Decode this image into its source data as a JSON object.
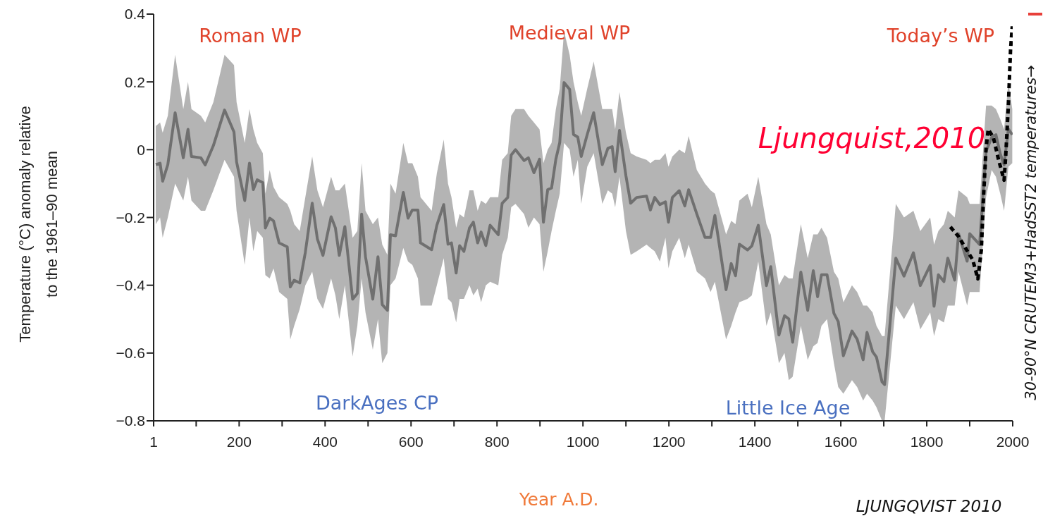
{
  "chart_data": {
    "type": "line",
    "xlabel": "Year A.D.",
    "ylabel": "Temperature (°C) anomaly relative to the 1961–90 mean",
    "annotations": [
      "Roman WP",
      "Medieval WP",
      "Today’s WP",
      "DarkAges CP",
      "Little Ice Age",
      "Ljungquist,2010",
      "LJUNGQVIST 2010",
      "30-90°N CRUTEM3+HadSST2 temperatures→"
    ],
    "xlim": [
      1,
      2000
    ],
    "xticks": [
      1,
      {
        "value": 100,
        "label": null
      },
      200,
      {
        "value": 300,
        "label": null
      },
      400,
      {
        "value": 500,
        "label": null
      },
      600,
      {
        "value": 700,
        "label": null
      },
      800,
      {
        "value": 900,
        "label": null
      },
      1000,
      {
        "value": 1100,
        "label": null
      },
      1200,
      {
        "value": 1300,
        "label": null
      },
      1400,
      {
        "value": 1500,
        "label": null
      },
      1600,
      {
        "value": 1700,
        "label": null
      },
      1800,
      {
        "value": 1900,
        "label": null
      },
      2000
    ],
    "ylim": [
      -0.8,
      0.4
    ],
    "yticks": [
      {
        "value": -0.8,
        "label": "−0.8"
      },
      {
        "value": -0.6,
        "label": "−0.6"
      },
      {
        "value": -0.4,
        "label": "−0.4"
      },
      {
        "value": -0.2,
        "label": "−0.2"
      },
      0,
      0.2,
      0.4
    ],
    "grid": false,
    "legend": false,
    "marker": "none",
    "series": [
      {
        "type": "line",
        "color": "#707070",
        "line_style": "solid",
        "x": [
          6,
          16,
          22,
          34,
          51,
          70,
          81,
          89,
          111,
          121,
          140,
          166,
          188,
          194,
          213,
          224,
          233,
          242,
          255,
          261,
          271,
          280,
          293,
          312,
          319,
          328,
          341,
          354,
          370,
          382,
          395,
          414,
          424,
          433,
          446,
          464,
          475,
          485,
          494,
          511,
          523,
          533,
          545,
          552,
          564,
          582,
          593,
          603,
          616,
          622,
          648,
          660,
          676,
          686,
          694,
          705,
          713,
          723,
          736,
          745,
          755,
          763,
          774,
          784,
          803,
          812,
          825,
          833,
          843,
          863,
          873,
          886,
          899,
          908,
          918,
          927,
          937,
          946,
          956,
          969,
          978,
          988,
          996,
          1010,
          1025,
          1045,
          1058,
          1068,
          1075,
          1085,
          1100,
          1111,
          1125,
          1148,
          1157,
          1167,
          1179,
          1192,
          1199,
          1208,
          1224,
          1237,
          1246,
          1265,
          1284,
          1297,
          1307,
          1333,
          1345,
          1355,
          1364,
          1383,
          1393,
          1408,
          1427,
          1437,
          1456,
          1469,
          1479,
          1488,
          1507,
          1523,
          1536,
          1546,
          1555,
          1568,
          1584,
          1594,
          1606,
          1626,
          1638,
          1652,
          1661,
          1674,
          1683,
          1696,
          1702,
          1728,
          1747,
          1769,
          1785,
          1808,
          1817,
          1827,
          1840,
          1849,
          1865,
          1874,
          1894,
          1900,
          1923,
          1938,
          1951,
          1961,
          1971,
          1980,
          1990,
          1999
        ],
        "values": [
          -0.044,
          -0.04,
          -0.093,
          -0.044,
          0.109,
          -0.024,
          0.06,
          -0.02,
          -0.024,
          -0.045,
          0.012,
          0.117,
          0.052,
          -0.036,
          -0.15,
          -0.04,
          -0.118,
          -0.089,
          -0.097,
          -0.231,
          -0.202,
          -0.21,
          -0.275,
          -0.287,
          -0.405,
          -0.385,
          -0.393,
          -0.303,
          -0.158,
          -0.263,
          -0.312,
          -0.198,
          -0.231,
          -0.312,
          -0.227,
          -0.441,
          -0.424,
          -0.19,
          -0.316,
          -0.441,
          -0.316,
          -0.457,
          -0.474,
          -0.251,
          -0.254,
          -0.126,
          -0.202,
          -0.178,
          -0.178,
          -0.275,
          -0.295,
          -0.223,
          -0.162,
          -0.279,
          -0.275,
          -0.364,
          -0.283,
          -0.3,
          -0.231,
          -0.214,
          -0.275,
          -0.243,
          -0.283,
          -0.223,
          -0.251,
          -0.158,
          -0.141,
          -0.016,
          0.0,
          -0.032,
          -0.024,
          -0.068,
          -0.028,
          -0.214,
          -0.118,
          -0.113,
          -0.028,
          0.021,
          0.198,
          0.178,
          0.045,
          0.037,
          -0.02,
          0.045,
          0.109,
          -0.044,
          0.004,
          0.009,
          -0.065,
          0.057,
          -0.077,
          -0.158,
          -0.141,
          -0.137,
          -0.178,
          -0.141,
          -0.162,
          -0.154,
          -0.214,
          -0.141,
          -0.121,
          -0.166,
          -0.118,
          -0.19,
          -0.259,
          -0.259,
          -0.194,
          -0.413,
          -0.336,
          -0.372,
          -0.279,
          -0.296,
          -0.284,
          -0.223,
          -0.401,
          -0.345,
          -0.547,
          -0.49,
          -0.499,
          -0.568,
          -0.361,
          -0.474,
          -0.357,
          -0.434,
          -0.369,
          -0.369,
          -0.483,
          -0.507,
          -0.608,
          -0.535,
          -0.559,
          -0.62,
          -0.539,
          -0.596,
          -0.612,
          -0.685,
          -0.693,
          -0.32,
          -0.373,
          -0.304,
          -0.401,
          -0.341,
          -0.462,
          -0.369,
          -0.389,
          -0.32,
          -0.385,
          -0.248,
          -0.329,
          -0.248,
          -0.28,
          -0.005,
          0.036,
          0.044,
          -0.012,
          -0.045,
          0.061,
          0.044
        ],
        "lower": [
          -0.22,
          -0.2,
          -0.26,
          -0.2,
          -0.1,
          -0.15,
          -0.08,
          -0.15,
          -0.18,
          -0.18,
          -0.12,
          -0.03,
          -0.08,
          -0.18,
          -0.34,
          -0.2,
          -0.3,
          -0.24,
          -0.26,
          -0.37,
          -0.38,
          -0.35,
          -0.42,
          -0.44,
          -0.56,
          -0.52,
          -0.47,
          -0.4,
          -0.36,
          -0.44,
          -0.47,
          -0.38,
          -0.43,
          -0.5,
          -0.4,
          -0.61,
          -0.52,
          -0.38,
          -0.48,
          -0.59,
          -0.5,
          -0.63,
          -0.6,
          -0.4,
          -0.38,
          -0.29,
          -0.33,
          -0.34,
          -0.38,
          -0.46,
          -0.46,
          -0.4,
          -0.32,
          -0.44,
          -0.45,
          -0.51,
          -0.44,
          -0.44,
          -0.4,
          -0.43,
          -0.41,
          -0.45,
          -0.4,
          -0.39,
          -0.4,
          -0.31,
          -0.26,
          -0.17,
          -0.16,
          -0.19,
          -0.23,
          -0.2,
          -0.22,
          -0.36,
          -0.3,
          -0.24,
          -0.18,
          -0.13,
          0.02,
          0.0,
          -0.08,
          -0.03,
          -0.16,
          -0.05,
          -0.01,
          -0.16,
          -0.12,
          -0.13,
          -0.17,
          -0.08,
          -0.24,
          -0.31,
          -0.3,
          -0.28,
          -0.29,
          -0.3,
          -0.33,
          -0.26,
          -0.35,
          -0.3,
          -0.26,
          -0.32,
          -0.28,
          -0.36,
          -0.38,
          -0.42,
          -0.39,
          -0.56,
          -0.52,
          -0.48,
          -0.45,
          -0.44,
          -0.43,
          -0.33,
          -0.52,
          -0.48,
          -0.63,
          -0.6,
          -0.68,
          -0.67,
          -0.52,
          -0.62,
          -0.58,
          -0.57,
          -0.52,
          -0.5,
          -0.63,
          -0.7,
          -0.72,
          -0.68,
          -0.7,
          -0.74,
          -0.72,
          -0.74,
          -0.76,
          -0.8,
          -0.8,
          -0.46,
          -0.5,
          -0.45,
          -0.53,
          -0.48,
          -0.55,
          -0.5,
          -0.51,
          -0.46,
          -0.46,
          -0.36,
          -0.46,
          -0.42,
          -0.42,
          -0.14,
          -0.06,
          -0.08,
          -0.13,
          -0.18,
          -0.05,
          -0.04
        ],
        "upper": [
          0.07,
          0.08,
          0.05,
          0.1,
          0.28,
          0.12,
          0.2,
          0.12,
          0.1,
          0.08,
          0.14,
          0.28,
          0.25,
          0.14,
          0.02,
          0.12,
          0.06,
          0.02,
          -0.01,
          -0.13,
          -0.06,
          -0.11,
          -0.14,
          -0.16,
          -0.18,
          -0.22,
          -0.24,
          -0.14,
          -0.02,
          -0.12,
          -0.17,
          -0.08,
          -0.12,
          -0.12,
          -0.1,
          -0.26,
          -0.24,
          -0.04,
          -0.18,
          -0.22,
          -0.2,
          -0.28,
          -0.31,
          -0.1,
          -0.13,
          0.02,
          -0.04,
          -0.04,
          -0.08,
          -0.14,
          -0.18,
          -0.07,
          0.03,
          -0.1,
          -0.14,
          -0.23,
          -0.19,
          -0.2,
          -0.12,
          -0.12,
          -0.18,
          -0.15,
          -0.16,
          -0.14,
          -0.14,
          -0.03,
          -0.01,
          0.1,
          0.12,
          0.12,
          0.1,
          0.08,
          0.06,
          -0.04,
          0.0,
          0.02,
          0.12,
          0.18,
          0.35,
          0.28,
          0.2,
          0.14,
          0.1,
          0.18,
          0.26,
          0.12,
          0.12,
          0.12,
          0.06,
          0.17,
          0.05,
          -0.01,
          -0.02,
          -0.03,
          -0.04,
          -0.03,
          -0.03,
          -0.01,
          -0.05,
          -0.02,
          0.0,
          -0.01,
          0.04,
          -0.06,
          -0.1,
          -0.12,
          -0.13,
          -0.25,
          -0.21,
          -0.22,
          -0.15,
          -0.13,
          -0.17,
          -0.08,
          -0.22,
          -0.25,
          -0.4,
          -0.37,
          -0.38,
          -0.38,
          -0.22,
          -0.32,
          -0.25,
          -0.25,
          -0.23,
          -0.26,
          -0.36,
          -0.38,
          -0.45,
          -0.4,
          -0.42,
          -0.46,
          -0.46,
          -0.48,
          -0.52,
          -0.55,
          -0.55,
          -0.16,
          -0.2,
          -0.18,
          -0.24,
          -0.2,
          -0.28,
          -0.24,
          -0.22,
          -0.18,
          -0.2,
          -0.12,
          -0.14,
          -0.16,
          -0.16,
          0.13,
          0.13,
          0.12,
          0.09,
          0.06,
          0.2,
          0.12
        ]
      },
      {
        "type": "line",
        "color": "#000000",
        "line_style": "dashed",
        "x": [
          1855,
          1874,
          1891,
          1907,
          1919,
          1927,
          1932,
          1938,
          1943,
          1955,
          1967,
          1980,
          1984,
          1990,
          1995,
          1999
        ],
        "values": [
          -0.228,
          -0.256,
          -0.292,
          -0.325,
          -0.381,
          -0.296,
          -0.142,
          0.004,
          0.06,
          0.036,
          -0.029,
          -0.09,
          -0.013,
          0.133,
          0.295,
          0.364
        ]
      }
    ]
  }
}
